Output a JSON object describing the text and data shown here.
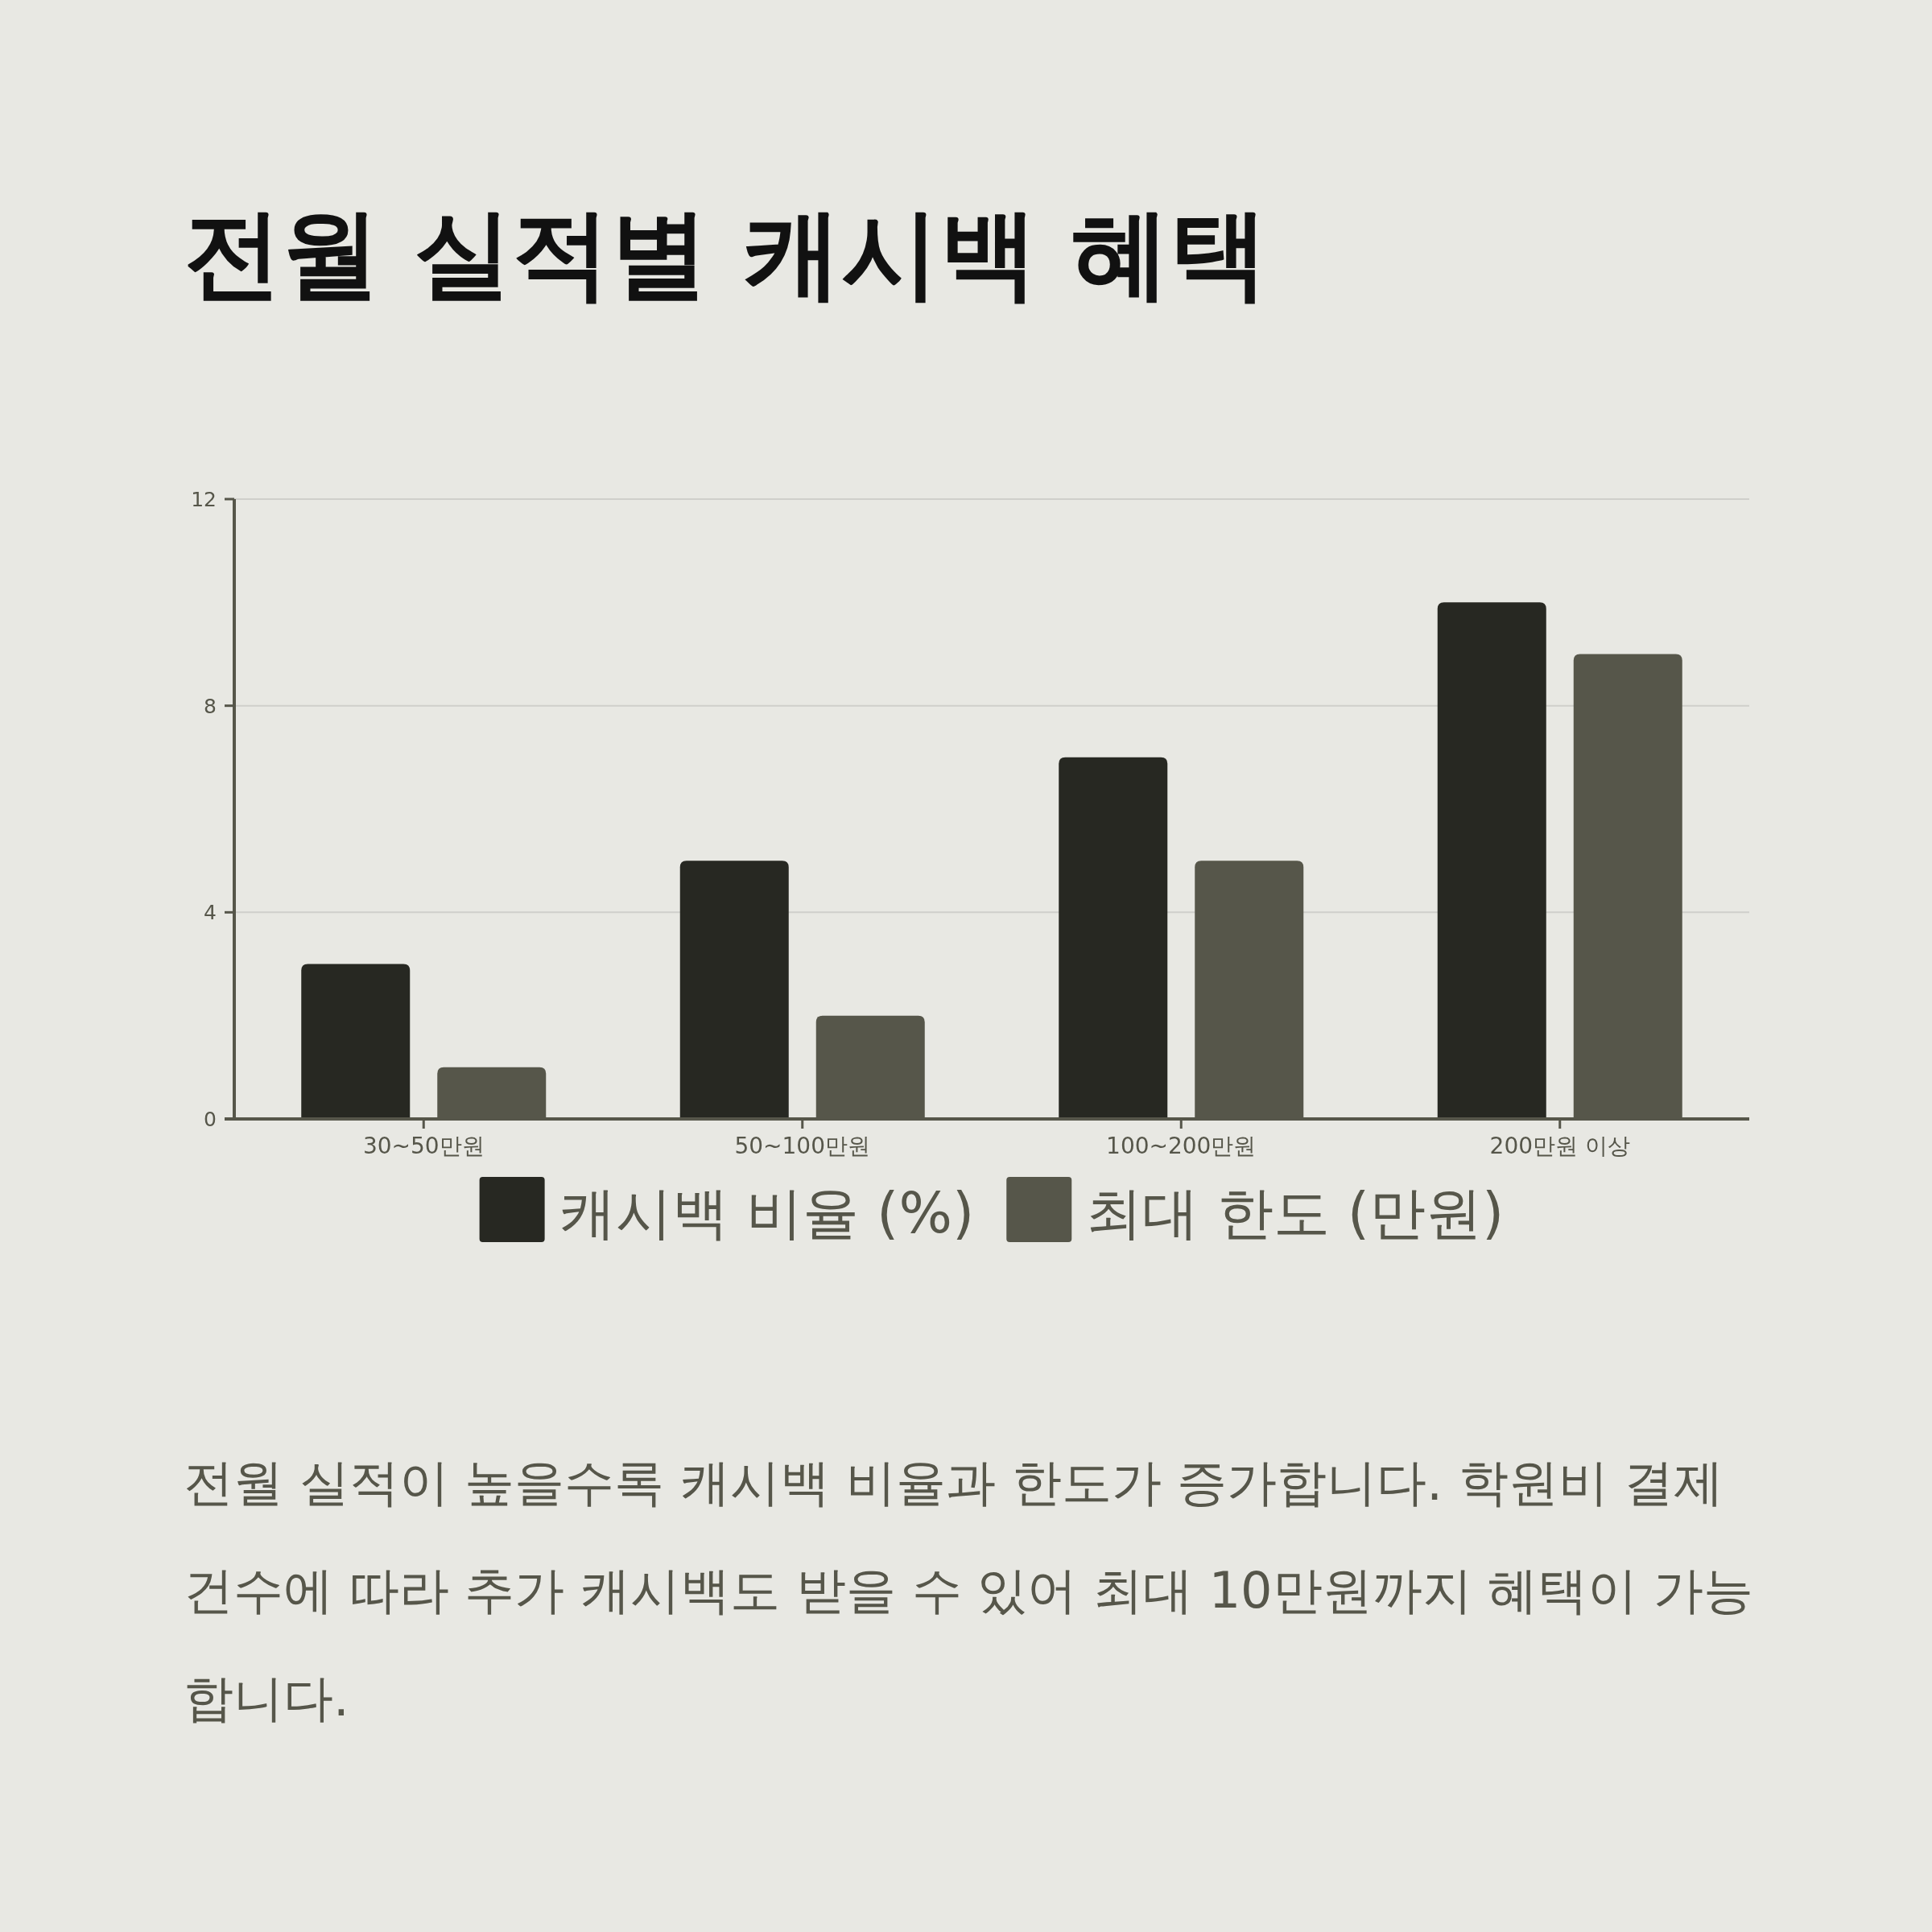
{
  "chart_data": {
    "type": "bar",
    "title": "전월 실적별 캐시백 혜택",
    "categories": [
      "30~50만원",
      "50~100만원",
      "100~200만원",
      "200만원 이상"
    ],
    "series": [
      {
        "name": "캐시백 비율 (%)",
        "color": "#272822",
        "values": [
          3,
          5,
          7,
          10
        ]
      },
      {
        "name": "최대 한도 (만원)",
        "color": "#56564a",
        "values": [
          1,
          2,
          5,
          9
        ]
      }
    ],
    "ylim": [
      0,
      12
    ],
    "yticks": [
      0,
      4,
      8,
      12
    ],
    "grid": "y",
    "legend": "bottom",
    "annotations": [
      "전월 실적이 높을수록 캐시백 비율과 한도가 증가합니다. 학원비 결제 건수에 따라 추가 캐시백도 받을 수 있어 최대 10만원까지 혜택이 가능합니다."
    ]
  }
}
